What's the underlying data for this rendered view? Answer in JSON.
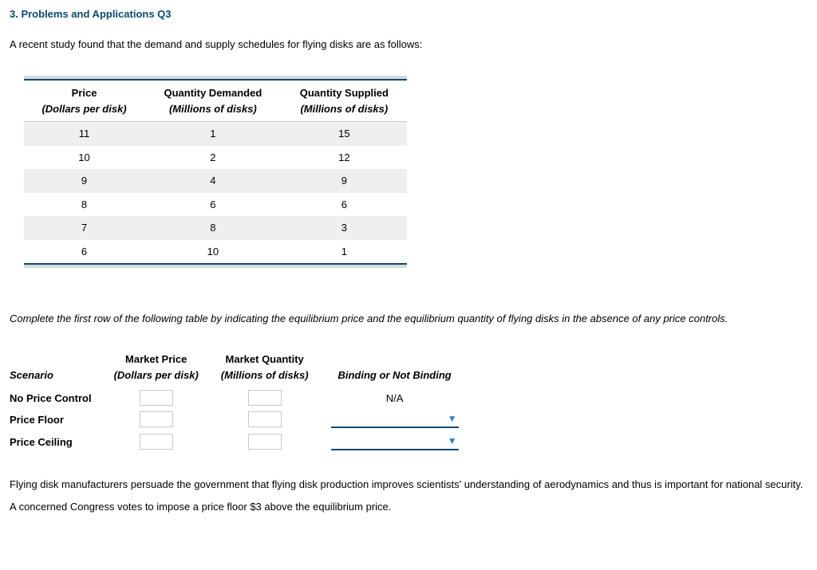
{
  "title": "3. Problems and Applications Q3",
  "intro": "A recent study found that the demand and supply schedules for flying disks are as follows:",
  "supply_table": {
    "headers": {
      "price": "Price",
      "price_sub": "(Dollars per disk)",
      "qd": "Quantity Demanded",
      "qd_sub": "(Millions of disks)",
      "qs": "Quantity Supplied",
      "qs_sub": "(Millions of disks)"
    },
    "rows": [
      {
        "price": "11",
        "qd": "1",
        "qs": "15"
      },
      {
        "price": "10",
        "qd": "2",
        "qs": "12"
      },
      {
        "price": "9",
        "qd": "4",
        "qs": "9"
      },
      {
        "price": "8",
        "qd": "6",
        "qs": "6"
      },
      {
        "price": "7",
        "qd": "8",
        "qs": "3"
      },
      {
        "price": "6",
        "qd": "10",
        "qs": "1"
      }
    ],
    "colors": {
      "accent": "#0b4a6f",
      "alt_row_bg": "#efefef",
      "outer_border": "#d9d9d9"
    }
  },
  "instruction": "Complete the first row of the following table by indicating the equilibrium price and the equilibrium quantity of flying disks in the absence of any price controls.",
  "answer_table": {
    "headers": {
      "scenario": "Scenario",
      "mp": "Market Price",
      "mp_sub": "(Dollars per disk)",
      "mq": "Market Quantity",
      "mq_sub": "(Millions of disks)",
      "binding": "Binding or Not Binding"
    },
    "rows": {
      "no_control": {
        "label": "No Price Control",
        "binding": "N/A"
      },
      "floor": {
        "label": "Price Floor"
      },
      "ceiling": {
        "label": "Price Ceiling"
      }
    }
  },
  "paragraph": "Flying disk manufacturers persuade the government that flying disk production improves scientists' understanding of aerodynamics and thus is important for national security. A concerned Congress votes to impose a price floor $3 above the equilibrium price."
}
